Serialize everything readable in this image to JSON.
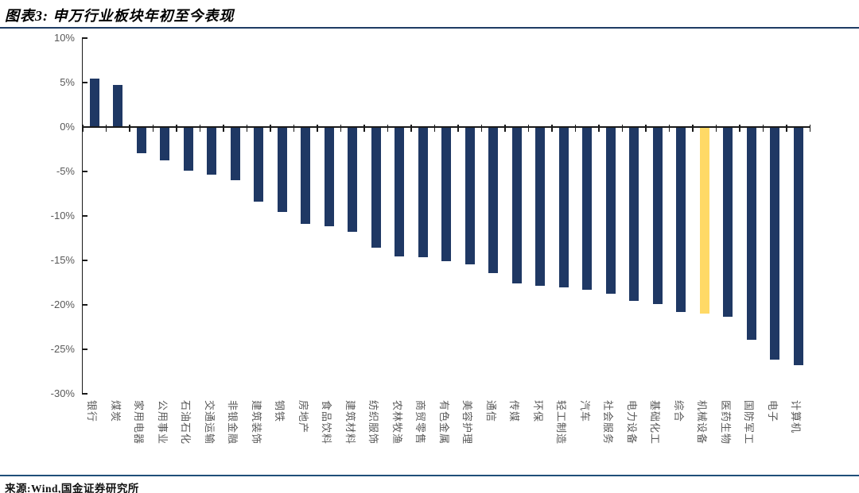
{
  "figure": {
    "title": "图表3: 申万行业板块年初至今表现",
    "source": "来源:Wind,国金证券研究所"
  },
  "colors": {
    "bar": "#1F3864",
    "highlight_bar": "#FFD966",
    "axis": "#1a1a1a",
    "tick_label": "#595959",
    "title_rule": "#1E3C64",
    "footer_rule": "#1F4E79"
  },
  "chart_data": {
    "type": "bar",
    "title": "申万行业板块年初至今表现",
    "xlabel": "",
    "ylabel": "",
    "ylim": [
      -30,
      10
    ],
    "ytick_step": 5,
    "ytick_labels": [
      "10%",
      "5%",
      "0%",
      "-5%",
      "-10%",
      "-15%",
      "-20%",
      "-25%",
      "-30%"
    ],
    "grid": false,
    "legend": null,
    "categories": [
      "银行",
      "煤炭",
      "家用电器",
      "公用事业",
      "石油石化",
      "交通运输",
      "非银金融",
      "建筑装饰",
      "钢铁",
      "房地产",
      "食品饮料",
      "建筑材料",
      "纺织服饰",
      "农林牧渔",
      "商贸零售",
      "有色金属",
      "美容护理",
      "通信",
      "传媒",
      "环保",
      "轻工制造",
      "汽车",
      "社会服务",
      "电力设备",
      "基础化工",
      "综合",
      "机械设备",
      "医药生物",
      "国防军工",
      "电子",
      "计算机"
    ],
    "values": [
      5.4,
      4.7,
      -2.9,
      -3.7,
      -4.8,
      -5.3,
      -5.9,
      -8.3,
      -9.5,
      -10.8,
      -11.1,
      -11.7,
      -13.5,
      -14.5,
      -14.6,
      -15.0,
      -15.4,
      -16.4,
      -17.5,
      -17.8,
      -18.0,
      -18.2,
      -18.7,
      -19.5,
      -19.8,
      -20.7,
      -20.9,
      -21.3,
      -23.9,
      -26.1,
      -26.7
    ],
    "highlight_category": "机械设备",
    "highlight_index": 26,
    "unit": "%"
  }
}
